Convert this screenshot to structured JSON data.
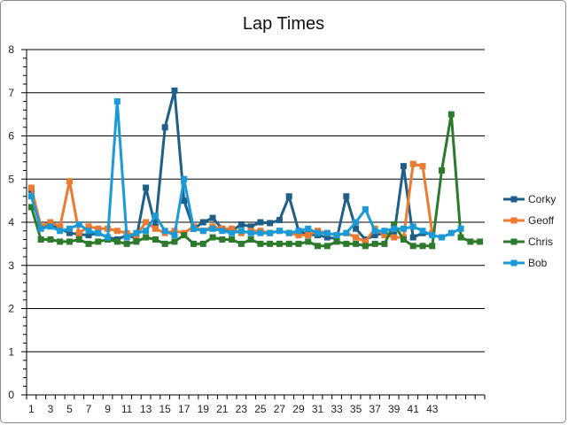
{
  "chart_data": {
    "type": "line",
    "title": "Lap Times",
    "xlabel": "",
    "ylabel": "",
    "ylim": [
      0,
      8
    ],
    "xlim": [
      1,
      48
    ],
    "y_ticks": [
      "0",
      "1",
      "2",
      "3",
      "4",
      "5",
      "6",
      "7",
      "8"
    ],
    "x_tick_labels": [
      "1",
      "3",
      "5",
      "7",
      "9",
      "11",
      "13",
      "15",
      "17",
      "19",
      "21",
      "23",
      "25",
      "27",
      "29",
      "31",
      "33",
      "35",
      "37",
      "39",
      "41",
      "43"
    ],
    "x_tick_positions": [
      1,
      3,
      5,
      7,
      9,
      11,
      13,
      15,
      17,
      19,
      21,
      23,
      25,
      27,
      29,
      31,
      33,
      35,
      37,
      39,
      41,
      43
    ],
    "grid": true,
    "legend_position": "right",
    "series": [
      {
        "name": "Corky",
        "color": "#1f5f87",
        "x": [
          1,
          2,
          3,
          4,
          5,
          6,
          7,
          8,
          9,
          10,
          11,
          12,
          13,
          14,
          15,
          16,
          17,
          18,
          19,
          20,
          21,
          22,
          23,
          24,
          25,
          26,
          27,
          28,
          29,
          30,
          31,
          32,
          33,
          34,
          35,
          36,
          37,
          38,
          39,
          40,
          41,
          42,
          43
        ],
        "values": [
          4.75,
          3.9,
          3.95,
          3.85,
          3.75,
          3.72,
          3.7,
          3.75,
          3.65,
          3.6,
          3.7,
          3.62,
          4.8,
          3.9,
          6.2,
          7.05,
          4.5,
          3.85,
          4.0,
          4.1,
          3.85,
          3.8,
          3.95,
          3.9,
          4.0,
          3.98,
          4.05,
          4.6,
          3.8,
          3.72,
          3.7,
          3.65,
          3.62,
          4.6,
          3.85,
          3.6,
          3.7,
          3.75,
          3.7,
          5.3,
          3.65,
          3.75,
          3.72
        ]
      },
      {
        "name": "Geoff",
        "color": "#ec7a31",
        "x": [
          1,
          2,
          3,
          4,
          5,
          6,
          7,
          8,
          9,
          10,
          11,
          12,
          13,
          14,
          15,
          16,
          17,
          18,
          19,
          20,
          21,
          22,
          23,
          24,
          25,
          26,
          27,
          28,
          29,
          30,
          31,
          32,
          33,
          34,
          35,
          36,
          37,
          38,
          39,
          40,
          41,
          42,
          43
        ],
        "values": [
          4.8,
          3.9,
          4.0,
          3.9,
          4.95,
          3.75,
          3.9,
          3.85,
          3.85,
          3.8,
          3.75,
          3.7,
          4.0,
          3.85,
          3.75,
          3.8,
          3.75,
          3.9,
          3.8,
          3.9,
          3.85,
          3.85,
          3.75,
          3.8,
          3.8,
          3.75,
          3.8,
          3.75,
          3.7,
          3.7,
          3.8,
          3.75,
          3.7,
          3.75,
          3.65,
          3.55,
          3.85,
          3.7,
          3.65,
          3.65,
          5.35,
          5.3,
          3.75
        ]
      },
      {
        "name": "Chris",
        "color": "#2d7a2d",
        "x": [
          1,
          2,
          3,
          4,
          5,
          6,
          7,
          8,
          9,
          10,
          11,
          12,
          13,
          14,
          15,
          16,
          17,
          18,
          19,
          20,
          21,
          22,
          23,
          24,
          25,
          26,
          27,
          28,
          29,
          30,
          31,
          32,
          33,
          34,
          35,
          36,
          37,
          38,
          39,
          40,
          41,
          42,
          43,
          44,
          45,
          46,
          47,
          48
        ],
        "values": [
          4.35,
          3.6,
          3.6,
          3.55,
          3.55,
          3.6,
          3.5,
          3.55,
          3.6,
          3.55,
          3.5,
          3.55,
          3.65,
          3.6,
          3.5,
          3.55,
          3.7,
          3.5,
          3.5,
          3.65,
          3.6,
          3.6,
          3.5,
          3.6,
          3.5,
          3.5,
          3.5,
          3.5,
          3.5,
          3.55,
          3.45,
          3.45,
          3.55,
          3.5,
          3.5,
          3.45,
          3.5,
          3.5,
          3.95,
          3.6,
          3.45,
          3.45,
          3.45,
          5.2,
          6.5,
          3.65,
          3.55,
          3.55
        ]
      },
      {
        "name": "Bob",
        "color": "#1a9ad6",
        "x": [
          1,
          2,
          3,
          4,
          5,
          6,
          7,
          8,
          9,
          10,
          11,
          12,
          13,
          14,
          15,
          16,
          17,
          18,
          19,
          20,
          21,
          22,
          23,
          24,
          25,
          26,
          27,
          28,
          29,
          30,
          31,
          32,
          33,
          34,
          35,
          36,
          37,
          38,
          39,
          40,
          41,
          42,
          43,
          44,
          45,
          46
        ],
        "values": [
          4.6,
          3.85,
          3.9,
          3.8,
          3.85,
          3.95,
          3.8,
          3.75,
          3.65,
          6.8,
          3.65,
          3.75,
          3.8,
          4.15,
          3.8,
          3.7,
          5.0,
          3.85,
          3.8,
          3.85,
          3.8,
          3.75,
          3.8,
          3.75,
          3.75,
          3.75,
          3.8,
          3.75,
          3.8,
          3.85,
          3.75,
          3.75,
          3.7,
          3.75,
          4.0,
          4.3,
          3.8,
          3.8,
          3.85,
          3.85,
          3.9,
          3.8,
          3.7,
          3.65,
          3.75,
          3.85
        ]
      }
    ]
  }
}
